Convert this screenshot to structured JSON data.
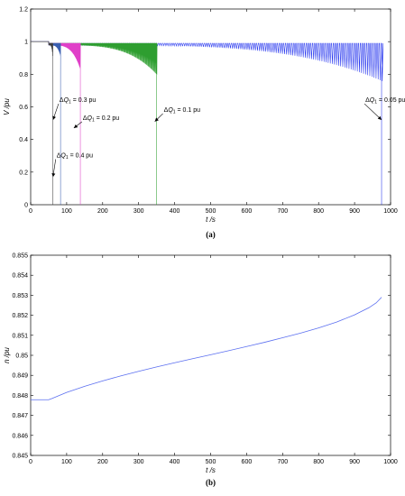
{
  "chart_data": [
    {
      "id": "a",
      "type": "line",
      "panel_label": "(a)",
      "xlabel": "t /s",
      "ylabel": "V /pu",
      "xlim": [
        0,
        1000
      ],
      "ylim": [
        0,
        1.2
      ],
      "xticks": [
        0,
        100,
        200,
        300,
        400,
        500,
        600,
        700,
        800,
        900,
        1000
      ],
      "yticks": [
        0,
        0.2,
        0.4,
        0.6,
        0.8,
        1,
        1.2
      ],
      "ytick_labels": [
        "0",
        "0.2",
        "0.4",
        "0.6",
        "0.8",
        "1",
        "1.2"
      ],
      "grid": false,
      "series": [
        {
          "name": "ΔQ1 = 0.4 pu",
          "color": "#404040",
          "t_collapse": 62,
          "oscillation_depth": 0.1
        },
        {
          "name": "ΔQ1 = 0.3 pu",
          "color": "#3a5fb0",
          "t_collapse": 83,
          "oscillation_depth": 0.07
        },
        {
          "name": "ΔQ1 = 0.2 pu",
          "color": "#e040c8",
          "t_collapse": 138,
          "oscillation_depth": 0.15
        },
        {
          "name": "ΔQ1 = 0.1 pu",
          "color": "#2e9e30",
          "t_collapse": 350,
          "oscillation_depth": 0.18
        },
        {
          "name": "ΔQ1 = 0.05 pu",
          "color": "#2030ee",
          "t_collapse": 975,
          "oscillation_depth": 0.22
        }
      ],
      "annotations": [
        {
          "delta": "Δ",
          "q": "Q",
          "sub": "1",
          "value": " = 0.3 pu",
          "target": [
            62,
            0.52
          ],
          "text_at": [
            80,
            0.63
          ]
        },
        {
          "delta": "Δ",
          "q": "Q",
          "sub": "1",
          "value": " = 0.2 pu",
          "target": [
            120,
            0.47
          ],
          "text_at": [
            145,
            0.52
          ]
        },
        {
          "delta": "Δ",
          "q": "Q",
          "sub": "1",
          "value": " = 0.4 pu",
          "target": [
            62,
            0.17
          ],
          "text_at": [
            72,
            0.29
          ]
        },
        {
          "delta": "Δ",
          "q": "Q",
          "sub": "1",
          "value": " = 0.1 pu",
          "target": [
            345,
            0.51
          ],
          "text_at": [
            370,
            0.57
          ]
        },
        {
          "delta": "Δ",
          "q": "Q",
          "sub": "1",
          "value": " = 0.05 pu",
          "target": [
            975,
            0.52
          ],
          "text_at": [
            930,
            0.63
          ]
        }
      ]
    },
    {
      "id": "b",
      "type": "line",
      "panel_label": "(b)",
      "xlabel": "t /s",
      "ylabel": "n /pu",
      "xlim": [
        0,
        1000
      ],
      "ylim": [
        0.845,
        0.855
      ],
      "xticks": [
        0,
        100,
        200,
        300,
        400,
        500,
        600,
        700,
        800,
        900,
        1000
      ],
      "yticks": [
        0.845,
        0.846,
        0.847,
        0.848,
        0.849,
        0.85,
        0.851,
        0.852,
        0.853,
        0.854,
        0.855
      ],
      "ytick_labels": [
        "0.845",
        "0.846",
        "0.847",
        "0.848",
        "0.849",
        "0.85",
        "0.851",
        "0.852",
        "0.853",
        "0.854",
        "0.855"
      ],
      "grid": false,
      "series": [
        {
          "color": "#5b6ff0",
          "x": [
            0,
            50,
            60,
            100,
            150,
            200,
            250,
            300,
            350,
            400,
            450,
            500,
            550,
            600,
            650,
            700,
            750,
            800,
            850,
            900,
            940,
            960,
            975
          ],
          "y": [
            0.84778,
            0.84778,
            0.84785,
            0.84815,
            0.84845,
            0.84872,
            0.84897,
            0.8492,
            0.84942,
            0.84963,
            0.84983,
            0.85003,
            0.85023,
            0.85044,
            0.85065,
            0.85088,
            0.85111,
            0.85137,
            0.85166,
            0.85202,
            0.85238,
            0.85262,
            0.8529
          ]
        }
      ]
    }
  ]
}
